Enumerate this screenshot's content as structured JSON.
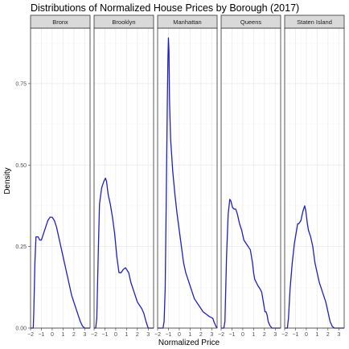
{
  "chart_data": {
    "type": "line",
    "title": "Distributions of Normalized House Prices by Borough (2017)",
    "xlabel": "Normalized Price",
    "ylabel": "Density",
    "xlim": [
      -2,
      3.5
    ],
    "ylim": [
      0,
      0.92
    ],
    "x_ticks": [
      -2,
      -1,
      0,
      1,
      2,
      3
    ],
    "x_tick_labels": [
      "−2",
      "−1",
      "0",
      "1",
      "2",
      "3"
    ],
    "y_ticks": [
      0,
      0.25,
      0.5,
      0.75
    ],
    "y_tick_labels": [
      "0.00",
      "0.25",
      "0.50",
      "0.75"
    ],
    "grid": true,
    "line_color": "#1f1fc8",
    "panels": [
      {
        "label": "Bronx",
        "x": [
          -2,
          -1.85,
          -1.75,
          -1.7,
          -1.6,
          -1.5,
          -1.3,
          -1.15,
          -1.0,
          -0.8,
          -0.6,
          -0.4,
          -0.2,
          0.0,
          0.2,
          0.4,
          0.6,
          0.8,
          1.0,
          1.2,
          1.4,
          1.6,
          1.8,
          2.0,
          2.2,
          2.4,
          2.6,
          2.8,
          3.0,
          3.5
        ],
        "y": [
          0,
          0.0,
          0.0,
          0.05,
          0.2,
          0.28,
          0.28,
          0.27,
          0.27,
          0.29,
          0.31,
          0.33,
          0.34,
          0.34,
          0.33,
          0.31,
          0.28,
          0.25,
          0.22,
          0.19,
          0.16,
          0.13,
          0.1,
          0.08,
          0.06,
          0.04,
          0.02,
          0.006,
          0.0,
          0
        ]
      },
      {
        "label": "Brooklyn",
        "x": [
          -2,
          -1.85,
          -1.75,
          -1.6,
          -1.5,
          -1.3,
          -1.1,
          -0.95,
          -0.85,
          -0.7,
          -0.5,
          -0.3,
          -0.1,
          0.1,
          0.3,
          0.5,
          0.7,
          0.9,
          1.0,
          1.2,
          1.4,
          1.6,
          1.8,
          2.0,
          2.2,
          2.4,
          2.6,
          2.8,
          3.0,
          3.5
        ],
        "y": [
          0,
          0.0,
          0.03,
          0.25,
          0.38,
          0.43,
          0.45,
          0.46,
          0.45,
          0.41,
          0.38,
          0.34,
          0.29,
          0.22,
          0.17,
          0.17,
          0.18,
          0.185,
          0.18,
          0.17,
          0.14,
          0.12,
          0.1,
          0.08,
          0.07,
          0.06,
          0.045,
          0.02,
          0.0,
          0
        ]
      },
      {
        "label": "Manhattan",
        "x": [
          -2,
          -1.5,
          -1.4,
          -1.3,
          -1.2,
          -1.1,
          -1.05,
          -1.0,
          -0.95,
          -0.9,
          -0.8,
          -0.6,
          -0.4,
          -0.2,
          0.0,
          0.2,
          0.4,
          0.6,
          0.8,
          1.0,
          1.2,
          1.4,
          1.6,
          1.8,
          2.0,
          2.2,
          2.4,
          2.6,
          2.8,
          3.0,
          3.1,
          3.2,
          3.4,
          3.5
        ],
        "y": [
          0,
          0.0,
          0.02,
          0.12,
          0.4,
          0.7,
          0.82,
          0.89,
          0.85,
          0.7,
          0.58,
          0.48,
          0.41,
          0.35,
          0.3,
          0.25,
          0.2,
          0.17,
          0.15,
          0.13,
          0.11,
          0.09,
          0.08,
          0.07,
          0.06,
          0.05,
          0.045,
          0.04,
          0.035,
          0.032,
          0.03,
          0.02,
          0.005,
          0
        ]
      },
      {
        "label": "Queens",
        "x": [
          -2,
          -1.75,
          -1.65,
          -1.5,
          -1.35,
          -1.2,
          -1.1,
          -0.95,
          -0.8,
          -0.65,
          -0.5,
          -0.3,
          -0.1,
          0.1,
          0.3,
          0.5,
          0.7,
          0.9,
          1.0,
          1.1,
          1.25,
          1.4,
          1.6,
          1.75,
          1.85,
          1.95,
          2.05,
          2.15,
          2.25,
          2.35,
          2.5,
          2.7,
          3.0,
          3.5
        ],
        "y": [
          0,
          0.0,
          0.02,
          0.22,
          0.35,
          0.395,
          0.39,
          0.37,
          0.365,
          0.365,
          0.35,
          0.32,
          0.3,
          0.27,
          0.26,
          0.25,
          0.24,
          0.2,
          0.17,
          0.15,
          0.14,
          0.13,
          0.12,
          0.11,
          0.09,
          0.07,
          0.05,
          0.05,
          0.04,
          0.02,
          0.008,
          0.0,
          0,
          0
        ]
      },
      {
        "label": "Staten Island",
        "x": [
          -2,
          -1.75,
          -1.65,
          -1.5,
          -1.3,
          -1.1,
          -0.9,
          -0.8,
          -0.7,
          -0.5,
          -0.3,
          -0.15,
          -0.05,
          0.1,
          0.2,
          0.4,
          0.6,
          0.8,
          1.0,
          1.2,
          1.4,
          1.6,
          1.8,
          2.0,
          2.2,
          2.4,
          2.6,
          2.8,
          3.0,
          3.5
        ],
        "y": [
          0,
          0.0,
          0.03,
          0.12,
          0.2,
          0.26,
          0.3,
          0.32,
          0.32,
          0.33,
          0.36,
          0.375,
          0.36,
          0.32,
          0.3,
          0.28,
          0.25,
          0.2,
          0.17,
          0.14,
          0.12,
          0.1,
          0.08,
          0.05,
          0.02,
          0.005,
          0.0,
          0,
          0,
          0
        ]
      }
    ]
  }
}
